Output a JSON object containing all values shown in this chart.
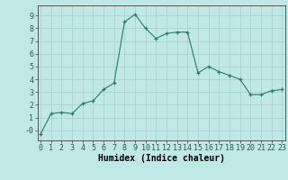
{
  "x": [
    0,
    1,
    2,
    3,
    4,
    5,
    6,
    7,
    8,
    9,
    10,
    11,
    12,
    13,
    14,
    15,
    16,
    17,
    18,
    19,
    20,
    21,
    22,
    23
  ],
  "y": [
    -0.3,
    1.3,
    1.4,
    1.3,
    2.1,
    2.3,
    3.2,
    3.7,
    8.5,
    9.1,
    8.0,
    7.2,
    7.6,
    7.7,
    7.7,
    4.5,
    5.0,
    4.6,
    4.3,
    4.0,
    2.8,
    2.8,
    3.1,
    3.2
  ],
  "xlabel": "Humidex (Indice chaleur)",
  "ylim": [
    -0.8,
    9.8
  ],
  "xlim": [
    -0.3,
    23.3
  ],
  "yticks": [
    0,
    1,
    2,
    3,
    4,
    5,
    6,
    7,
    8,
    9
  ],
  "ytick_labels": [
    "-0",
    "1",
    "2",
    "3",
    "4",
    "5",
    "6",
    "7",
    "8",
    "9"
  ],
  "xticks": [
    0,
    1,
    2,
    3,
    4,
    5,
    6,
    7,
    8,
    9,
    10,
    11,
    12,
    13,
    14,
    15,
    16,
    17,
    18,
    19,
    20,
    21,
    22,
    23
  ],
  "line_color": "#2a7a6a",
  "marker": "+",
  "bg_color": "#c0e8e4",
  "grid_color": "#a8ceca",
  "axis_color": "#404040",
  "xlabel_fontsize": 7,
  "tick_fontsize": 6,
  "linewidth": 0.8,
  "markersize": 3,
  "markeredgewidth": 0.9
}
